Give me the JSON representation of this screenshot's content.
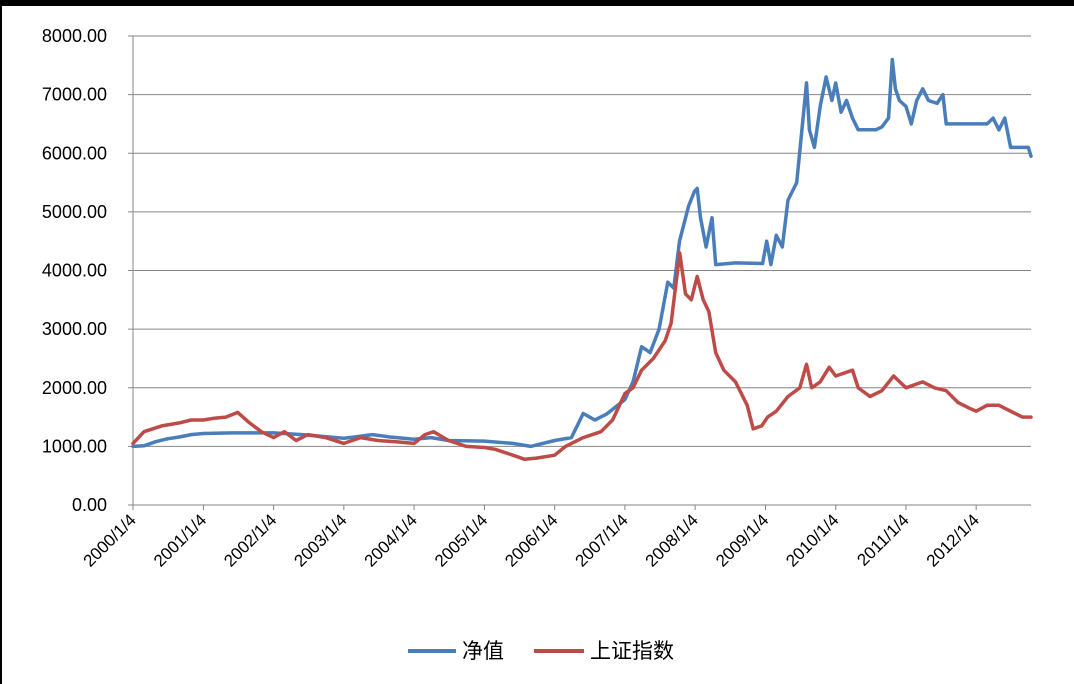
{
  "chart_data": {
    "type": "line",
    "title": "",
    "xlabel": "",
    "ylabel": "",
    "ylim": [
      0,
      8000
    ],
    "yticks": [
      "0.00",
      "1000.00",
      "2000.00",
      "3000.00",
      "4000.00",
      "5000.00",
      "6000.00",
      "7000.00",
      "8000.00"
    ],
    "xticks": [
      "2000/1/4",
      "2001/1/4",
      "2002/1/4",
      "2003/1/4",
      "2004/1/4",
      "2005/1/4",
      "2006/1/4",
      "2007/1/4",
      "2008/1/4",
      "2009/1/4",
      "2010/1/4",
      "2011/1/4",
      "2012/1/4"
    ],
    "xlim": [
      "2000-01-04",
      "2012-10-15"
    ],
    "grid": "horizontal",
    "legend": "bottom",
    "series": [
      {
        "name": "净值",
        "color": "#4A7EBB",
        "points": [
          [
            "2000-01-04",
            1000
          ],
          [
            "2000-03-01",
            1010
          ],
          [
            "2000-05-01",
            1080
          ],
          [
            "2000-07-01",
            1130
          ],
          [
            "2000-09-01",
            1160
          ],
          [
            "2000-11-01",
            1200
          ],
          [
            "2001-01-04",
            1220
          ],
          [
            "2001-06-01",
            1230
          ],
          [
            "2002-01-04",
            1230
          ],
          [
            "2002-06-01",
            1200
          ],
          [
            "2003-01-04",
            1140
          ],
          [
            "2003-03-01",
            1160
          ],
          [
            "2003-06-01",
            1200
          ],
          [
            "2003-09-01",
            1160
          ],
          [
            "2004-01-04",
            1120
          ],
          [
            "2004-04-01",
            1150
          ],
          [
            "2004-07-01",
            1100
          ],
          [
            "2005-01-04",
            1090
          ],
          [
            "2005-06-01",
            1050
          ],
          [
            "2005-09-01",
            1000
          ],
          [
            "2006-01-04",
            1100
          ],
          [
            "2006-04-01",
            1150
          ],
          [
            "2006-06-01",
            1560
          ],
          [
            "2006-08-01",
            1450
          ],
          [
            "2006-10-01",
            1550
          ],
          [
            "2007-01-04",
            1800
          ],
          [
            "2007-02-15",
            2100
          ],
          [
            "2007-04-01",
            2700
          ],
          [
            "2007-05-15",
            2600
          ],
          [
            "2007-07-01",
            3000
          ],
          [
            "2007-08-15",
            3800
          ],
          [
            "2007-09-15",
            3700
          ],
          [
            "2007-10-15",
            4500
          ],
          [
            "2007-12-01",
            5100
          ],
          [
            "2008-01-01",
            5350
          ],
          [
            "2008-01-15",
            5400
          ],
          [
            "2008-02-01",
            4900
          ],
          [
            "2008-03-01",
            4400
          ],
          [
            "2008-04-01",
            4900
          ],
          [
            "2008-04-20",
            4100
          ],
          [
            "2008-08-01",
            4130
          ],
          [
            "2008-12-20",
            4120
          ],
          [
            "2009-01-10",
            4500
          ],
          [
            "2009-02-01",
            4100
          ],
          [
            "2009-03-01",
            4600
          ],
          [
            "2009-04-01",
            4400
          ],
          [
            "2009-05-01",
            5200
          ],
          [
            "2009-06-15",
            5500
          ],
          [
            "2009-07-15",
            6500
          ],
          [
            "2009-08-05",
            7200
          ],
          [
            "2009-08-20",
            6400
          ],
          [
            "2009-09-15",
            6100
          ],
          [
            "2009-10-15",
            6800
          ],
          [
            "2009-11-15",
            7300
          ],
          [
            "2009-12-15",
            6900
          ],
          [
            "2010-01-04",
            7200
          ],
          [
            "2010-02-01",
            6700
          ],
          [
            "2010-03-01",
            6900
          ],
          [
            "2010-04-01",
            6600
          ],
          [
            "2010-05-01",
            6400
          ],
          [
            "2010-08-01",
            6400
          ],
          [
            "2010-09-01",
            6450
          ],
          [
            "2010-10-05",
            6600
          ],
          [
            "2010-10-25",
            7600
          ],
          [
            "2010-11-10",
            7100
          ],
          [
            "2010-12-01",
            6900
          ],
          [
            "2011-01-04",
            6800
          ],
          [
            "2011-02-01",
            6500
          ],
          [
            "2011-03-01",
            6900
          ],
          [
            "2011-04-01",
            7100
          ],
          [
            "2011-05-01",
            6900
          ],
          [
            "2011-06-15",
            6850
          ],
          [
            "2011-07-15",
            7000
          ],
          [
            "2011-08-01",
            6500
          ],
          [
            "2012-03-01",
            6500
          ],
          [
            "2012-04-01",
            6600
          ],
          [
            "2012-05-01",
            6400
          ],
          [
            "2012-06-01",
            6600
          ],
          [
            "2012-07-01",
            6100
          ],
          [
            "2012-10-01",
            6100
          ],
          [
            "2012-10-15",
            5950
          ]
        ]
      },
      {
        "name": "上证指数",
        "color": "#BE4B48",
        "points": [
          [
            "2000-01-04",
            1050
          ],
          [
            "2000-03-01",
            1250
          ],
          [
            "2000-06-01",
            1350
          ],
          [
            "2000-09-01",
            1400
          ],
          [
            "2000-11-01",
            1450
          ],
          [
            "2001-01-04",
            1450
          ],
          [
            "2001-03-01",
            1480
          ],
          [
            "2001-05-01",
            1500
          ],
          [
            "2001-07-01",
            1580
          ],
          [
            "2001-09-01",
            1400
          ],
          [
            "2001-11-01",
            1250
          ],
          [
            "2002-01-04",
            1150
          ],
          [
            "2002-03-01",
            1250
          ],
          [
            "2002-05-01",
            1100
          ],
          [
            "2002-07-01",
            1200
          ],
          [
            "2002-10-01",
            1150
          ],
          [
            "2003-01-04",
            1050
          ],
          [
            "2003-04-01",
            1150
          ],
          [
            "2003-07-01",
            1100
          ],
          [
            "2003-10-01",
            1080
          ],
          [
            "2004-01-04",
            1050
          ],
          [
            "2004-03-01",
            1200
          ],
          [
            "2004-04-15",
            1250
          ],
          [
            "2004-07-01",
            1100
          ],
          [
            "2004-10-01",
            1000
          ],
          [
            "2005-01-04",
            980
          ],
          [
            "2005-03-01",
            950
          ],
          [
            "2005-06-01",
            850
          ],
          [
            "2005-08-01",
            780
          ],
          [
            "2005-10-01",
            800
          ],
          [
            "2006-01-04",
            850
          ],
          [
            "2006-03-01",
            1000
          ],
          [
            "2006-06-01",
            1150
          ],
          [
            "2006-09-01",
            1250
          ],
          [
            "2006-11-01",
            1450
          ],
          [
            "2007-01-04",
            1900
          ],
          [
            "2007-02-15",
            2000
          ],
          [
            "2007-04-01",
            2300
          ],
          [
            "2007-06-01",
            2500
          ],
          [
            "2007-08-01",
            2800
          ],
          [
            "2007-09-01",
            3100
          ],
          [
            "2007-10-16",
            4300
          ],
          [
            "2007-11-15",
            3600
          ],
          [
            "2007-12-15",
            3500
          ],
          [
            "2008-01-15",
            3900
          ],
          [
            "2008-02-15",
            3500
          ],
          [
            "2008-03-15",
            3300
          ],
          [
            "2008-04-20",
            2600
          ],
          [
            "2008-06-01",
            2300
          ],
          [
            "2008-08-01",
            2100
          ],
          [
            "2008-10-01",
            1700
          ],
          [
            "2008-11-01",
            1300
          ],
          [
            "2008-12-15",
            1350
          ],
          [
            "2009-01-15",
            1500
          ],
          [
            "2009-03-01",
            1600
          ],
          [
            "2009-05-01",
            1850
          ],
          [
            "2009-07-01",
            2000
          ],
          [
            "2009-08-05",
            2400
          ],
          [
            "2009-09-01",
            2000
          ],
          [
            "2009-10-15",
            2100
          ],
          [
            "2009-12-01",
            2350
          ],
          [
            "2010-01-04",
            2200
          ],
          [
            "2010-04-01",
            2300
          ],
          [
            "2010-05-01",
            2000
          ],
          [
            "2010-07-01",
            1850
          ],
          [
            "2010-09-01",
            1950
          ],
          [
            "2010-11-01",
            2200
          ],
          [
            "2011-01-04",
            2000
          ],
          [
            "2011-04-01",
            2100
          ],
          [
            "2011-06-01",
            2000
          ],
          [
            "2011-08-01",
            1950
          ],
          [
            "2011-10-01",
            1750
          ],
          [
            "2011-12-01",
            1650
          ],
          [
            "2012-01-04",
            1600
          ],
          [
            "2012-03-01",
            1700
          ],
          [
            "2012-05-01",
            1700
          ],
          [
            "2012-07-01",
            1600
          ],
          [
            "2012-09-01",
            1500
          ],
          [
            "2012-10-15",
            1500
          ]
        ]
      }
    ]
  }
}
